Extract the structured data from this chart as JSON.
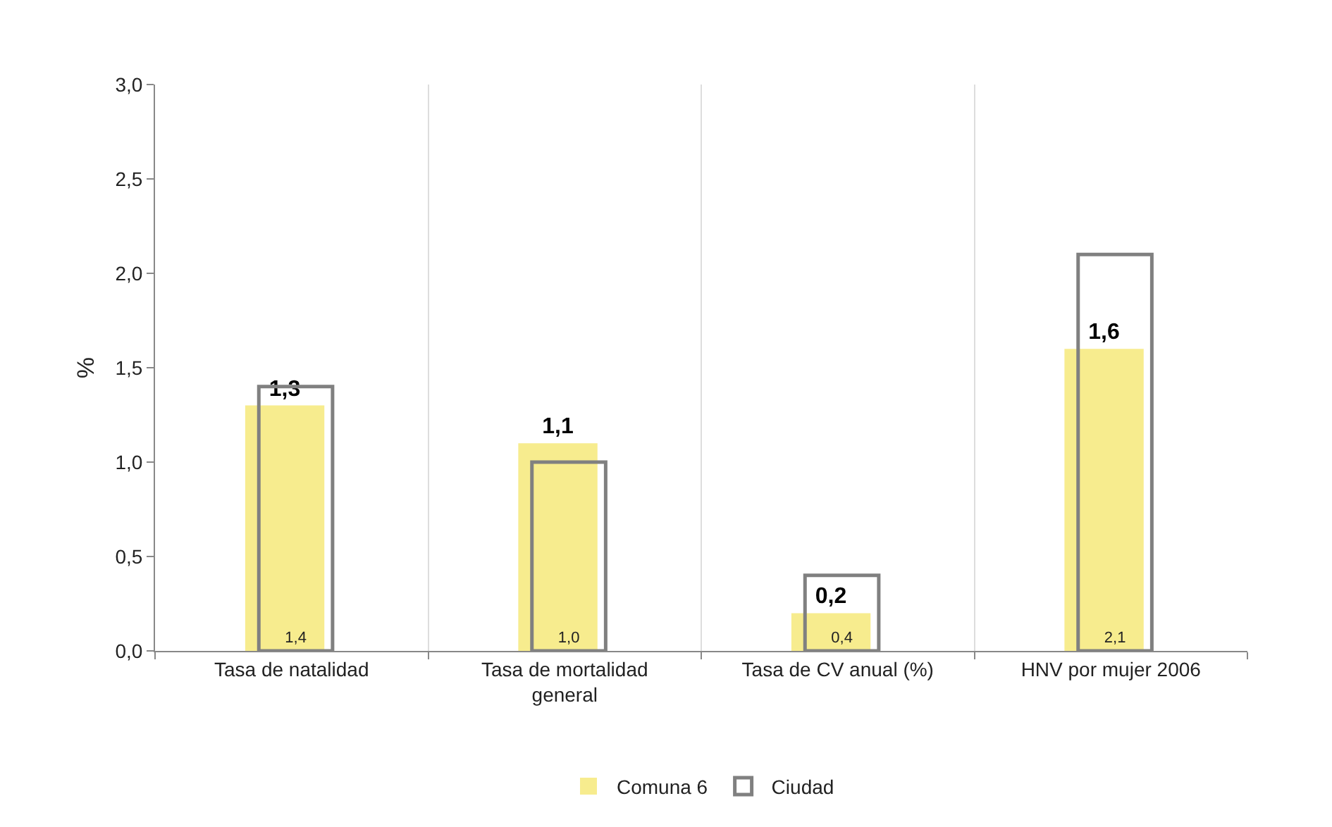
{
  "chart_data": {
    "type": "bar",
    "ylabel": "%",
    "categories": [
      "Tasa de natalidad",
      "Tasa de mortalidad general",
      "Tasa de CV anual (%)",
      "HNV por mujer 2006"
    ],
    "series": [
      {
        "name": "Comuna 6",
        "color": "#f7ec8e",
        "values": [
          1.3,
          1.1,
          0.2,
          1.6
        ],
        "value_labels": [
          "1,3",
          "1,1",
          "0,2",
          "1,6"
        ]
      },
      {
        "name": "Ciudad",
        "color": "#808080",
        "values": [
          1.4,
          1.0,
          0.4,
          2.1
        ],
        "value_labels": [
          "1,4",
          "1,0",
          "0,4",
          "2,1"
        ]
      }
    ],
    "ylim": [
      0,
      3
    ],
    "yticks": [
      {
        "value": 0,
        "label": "0,0"
      },
      {
        "value": 0.5,
        "label": "0,5"
      },
      {
        "value": 1,
        "label": "1,0"
      },
      {
        "value": 1.5,
        "label": "1,5"
      },
      {
        "value": 2,
        "label": "2,0"
      },
      {
        "value": 2.5,
        "label": "2,5"
      },
      {
        "value": 3,
        "label": "3,0"
      }
    ],
    "grid": "x",
    "legend": "bottom"
  }
}
